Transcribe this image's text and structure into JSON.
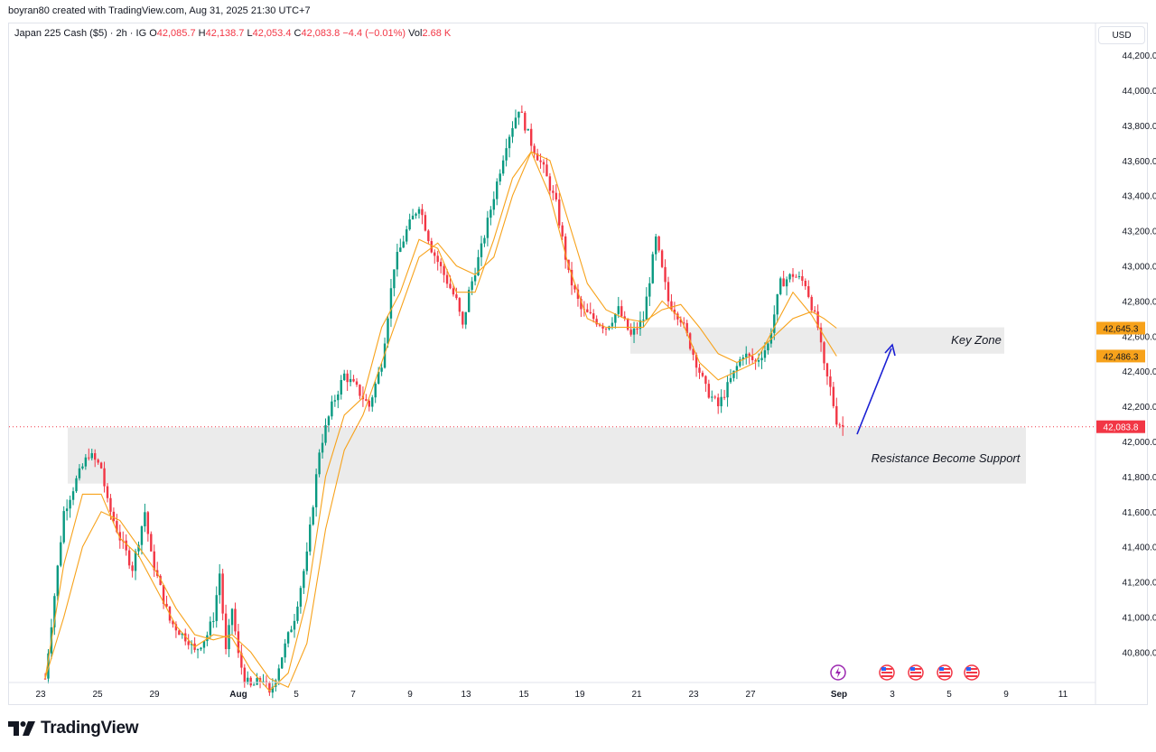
{
  "header": {
    "credit": "boyran80 created with TradingView.com, Aug 31, 2025 21:30 UTC+7"
  },
  "legend": {
    "symbol": "Japan 225 Cash ($5) · 2h · IG",
    "o_label": "O",
    "o_value": "42,085.7",
    "h_label": "H",
    "h_value": "42,138.7",
    "l_label": "L",
    "l_value": "42,053.4",
    "c_label": "C",
    "c_value": "42,083.8",
    "change": "−4.4 (−0.01%)",
    "vol_label": "Vol",
    "vol_value": "2.68 K"
  },
  "price_scale": {
    "currency": "USD"
  },
  "footer": {
    "brand": "TradingView"
  },
  "colors": {
    "up": "#089981",
    "down": "#f23645",
    "ma": "#f7a21b",
    "zone": "#e8e8e8",
    "arrow": "#1a1fd4",
    "badge": "#f7a21b",
    "last_badge": "#f23645"
  },
  "chart_data": {
    "type": "candlestick",
    "ylim": [
      40600,
      44400
    ],
    "yticks": [
      "40,800.0",
      "41,000.0",
      "41,200.0",
      "41,400.0",
      "41,600.0",
      "41,800.0",
      "42,000.0",
      "42,200.0",
      "42,400.0",
      "42,600.0",
      "42,800.0",
      "43,000.0",
      "43,200.0",
      "43,400.0",
      "43,600.0",
      "43,800.0",
      "44,000.0",
      "44,200.0"
    ],
    "ytick_values": [
      40800,
      41000,
      41200,
      41400,
      41600,
      41800,
      42000,
      42200,
      42400,
      42600,
      42800,
      43000,
      43200,
      43400,
      43600,
      43800,
      44000,
      44200
    ],
    "xticks": [
      "23",
      "25",
      "29",
      "Aug",
      "5",
      "7",
      "9",
      "13",
      "15",
      "19",
      "21",
      "23",
      "27",
      "Sep",
      "3",
      "5",
      "9",
      "11"
    ],
    "xtick_bold": [
      false,
      false,
      false,
      true,
      false,
      false,
      false,
      false,
      false,
      false,
      false,
      false,
      false,
      true,
      false,
      false,
      false,
      false
    ],
    "price_path": [
      [
        0,
        40650
      ],
      [
        3,
        41600
      ],
      [
        5,
        41780
      ],
      [
        7,
        41930
      ],
      [
        9,
        41850
      ],
      [
        10,
        41650
      ],
      [
        12,
        41450
      ],
      [
        14,
        41280
      ],
      [
        16,
        41600
      ],
      [
        17,
        41350
      ],
      [
        19,
        41100
      ],
      [
        20,
        40980
      ],
      [
        22,
        40900
      ],
      [
        23,
        40870
      ],
      [
        24,
        40800
      ],
      [
        26,
        40900
      ],
      [
        27,
        41000
      ],
      [
        28,
        41250
      ],
      [
        29,
        40800
      ],
      [
        30,
        41050
      ],
      [
        31,
        40780
      ],
      [
        32,
        40650
      ],
      [
        33,
        40600
      ],
      [
        35,
        40650
      ],
      [
        36,
        40550
      ],
      [
        38,
        40780
      ],
      [
        40,
        41000
      ],
      [
        42,
        41350
      ],
      [
        44,
        41950
      ],
      [
        46,
        42200
      ],
      [
        48,
        42380
      ],
      [
        50,
        42300
      ],
      [
        52,
        42200
      ],
      [
        54,
        42450
      ],
      [
        56,
        43000
      ],
      [
        58,
        43200
      ],
      [
        60,
        43350
      ],
      [
        62,
        43100
      ],
      [
        64,
        42950
      ],
      [
        66,
        42800
      ],
      [
        67,
        42650
      ],
      [
        68,
        42850
      ],
      [
        70,
        43100
      ],
      [
        72,
        43400
      ],
      [
        74,
        43700
      ],
      [
        76,
        43900
      ],
      [
        78,
        43700
      ],
      [
        80,
        43550
      ],
      [
        82,
        43350
      ],
      [
        84,
        42950
      ],
      [
        86,
        42750
      ],
      [
        88,
        42700
      ],
      [
        90,
        42650
      ],
      [
        92,
        42750
      ],
      [
        94,
        42600
      ],
      [
        96,
        42700
      ],
      [
        98,
        43150
      ],
      [
        100,
        42800
      ],
      [
        102,
        42700
      ],
      [
        104,
        42500
      ],
      [
        106,
        42300
      ],
      [
        108,
        42200
      ],
      [
        110,
        42350
      ],
      [
        112,
        42500
      ],
      [
        114,
        42450
      ],
      [
        116,
        42550
      ],
      [
        118,
        42900
      ],
      [
        120,
        42950
      ],
      [
        122,
        42900
      ],
      [
        124,
        42650
      ],
      [
        125,
        42420
      ],
      [
        126,
        42300
      ],
      [
        127,
        42120
      ],
      [
        128,
        42084
      ]
    ],
    "ma_fast_path": [
      [
        0,
        40650
      ],
      [
        3,
        41300
      ],
      [
        6,
        41700
      ],
      [
        9,
        41700
      ],
      [
        12,
        41450
      ],
      [
        15,
        41350
      ],
      [
        18,
        41150
      ],
      [
        21,
        40950
      ],
      [
        24,
        40830
      ],
      [
        27,
        40900
      ],
      [
        30,
        40880
      ],
      [
        33,
        40700
      ],
      [
        36,
        40580
      ],
      [
        39,
        40680
      ],
      [
        42,
        41100
      ],
      [
        45,
        41800
      ],
      [
        48,
        42150
      ],
      [
        51,
        42250
      ],
      [
        54,
        42650
      ],
      [
        57,
        42850
      ],
      [
        60,
        43150
      ],
      [
        63,
        43100
      ],
      [
        66,
        42850
      ],
      [
        69,
        42850
      ],
      [
        72,
        43150
      ],
      [
        75,
        43500
      ],
      [
        78,
        43650
      ],
      [
        81,
        43400
      ],
      [
        84,
        43000
      ],
      [
        87,
        42700
      ],
      [
        90,
        42650
      ],
      [
        93,
        42650
      ],
      [
        96,
        42650
      ],
      [
        99,
        42800
      ],
      [
        102,
        42700
      ],
      [
        105,
        42450
      ],
      [
        108,
        42350
      ],
      [
        111,
        42400
      ],
      [
        114,
        42450
      ],
      [
        117,
        42650
      ],
      [
        120,
        42850
      ],
      [
        123,
        42720
      ],
      [
        125,
        42600
      ],
      [
        127,
        42486
      ]
    ],
    "ma_slow_path": [
      [
        0,
        40650
      ],
      [
        3,
        41000
      ],
      [
        6,
        41400
      ],
      [
        9,
        41600
      ],
      [
        12,
        41550
      ],
      [
        15,
        41400
      ],
      [
        18,
        41250
      ],
      [
        21,
        41050
      ],
      [
        24,
        40900
      ],
      [
        27,
        40870
      ],
      [
        30,
        40900
      ],
      [
        33,
        40800
      ],
      [
        36,
        40650
      ],
      [
        39,
        40600
      ],
      [
        42,
        40850
      ],
      [
        45,
        41500
      ],
      [
        48,
        41950
      ],
      [
        51,
        42150
      ],
      [
        54,
        42450
      ],
      [
        57,
        42750
      ],
      [
        60,
        43050
      ],
      [
        63,
        43130
      ],
      [
        66,
        43000
      ],
      [
        69,
        42950
      ],
      [
        72,
        43050
      ],
      [
        75,
        43400
      ],
      [
        78,
        43650
      ],
      [
        81,
        43600
      ],
      [
        84,
        43250
      ],
      [
        87,
        42900
      ],
      [
        90,
        42750
      ],
      [
        93,
        42700
      ],
      [
        96,
        42680
      ],
      [
        99,
        42750
      ],
      [
        102,
        42780
      ],
      [
        105,
        42650
      ],
      [
        108,
        42500
      ],
      [
        111,
        42450
      ],
      [
        114,
        42500
      ],
      [
        117,
        42600
      ],
      [
        120,
        42700
      ],
      [
        123,
        42740
      ],
      [
        125,
        42700
      ],
      [
        127,
        42645
      ]
    ],
    "zones": [
      {
        "label": "Key Zone",
        "y_top": 42650,
        "y_bottom": 42500,
        "x_start_bar": 88,
        "x_end_bar": 135
      },
      {
        "label": "Resistance Become Support",
        "y_top": 42080,
        "y_bottom": 41760,
        "x_start_bar": 9,
        "x_end_bar": 137
      }
    ],
    "last_price": {
      "value": 42083.8,
      "label": "42,083.8"
    },
    "ma_labels": [
      {
        "value": 42645.3,
        "label": "42,645.3"
      },
      {
        "value": 42486.3,
        "label": "42,486.3"
      }
    ]
  }
}
